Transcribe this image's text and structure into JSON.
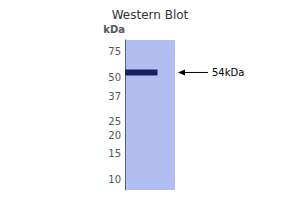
{
  "chart_data": {
    "type": "blot",
    "title": "Western Blot",
    "ylabel": "kDa",
    "log": "y",
    "ylim": [
      8.5,
      90
    ],
    "yticks": [
      75,
      50,
      37,
      25,
      20,
      15,
      10
    ],
    "values": [
      54
    ],
    "annotation": "54kDa",
    "color": "#1a2060"
  }
}
